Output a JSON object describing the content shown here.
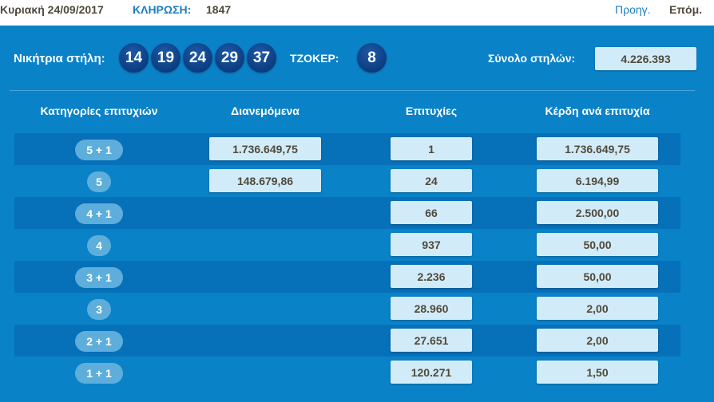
{
  "header": {
    "date": "Κυριακή 24/09/2017",
    "draw_label": "ΚΛΗΡΩΣΗ:",
    "draw_number": "1847",
    "prev": "Προηγ.",
    "next": "Επόμ."
  },
  "draw": {
    "winning_label": "Νικήτρια στήλη:",
    "numbers": [
      "14",
      "19",
      "24",
      "29",
      "37"
    ],
    "joker_label": "ΤΖΟΚΕΡ:",
    "joker": "8",
    "total_label": "Σύνολο στηλών:",
    "total": "4.226.393"
  },
  "table": {
    "columns": [
      "Κατηγορίες επιτυχιών",
      "Διανεμόμενα",
      "Επιτυχίες",
      "Κέρδη ανά επιτυχία"
    ],
    "rows": [
      {
        "category": "5 + 1",
        "distributed": "1.736.649,75",
        "winners": "1",
        "prize": "1.736.649,75"
      },
      {
        "category": "5",
        "distributed": "148.679,86",
        "winners": "24",
        "prize": "6.194,99"
      },
      {
        "category": "4 + 1",
        "winners": "66",
        "prize": "2.500,00"
      },
      {
        "category": "4",
        "winners": "937",
        "prize": "50,00"
      },
      {
        "category": "3 + 1",
        "winners": "2.236",
        "prize": "50,00"
      },
      {
        "category": "3",
        "winners": "28.960",
        "prize": "2,00"
      },
      {
        "category": "2 + 1",
        "winners": "27.651",
        "prize": "2,00"
      },
      {
        "category": "1 + 1",
        "winners": "120.271",
        "prize": "1,50"
      }
    ]
  },
  "colors": {
    "background": "#0a82c8",
    "row_dark": "#0670b8",
    "ball": "#0b3c80",
    "box": "#d2ebf8",
    "link": "#1a7fc1"
  }
}
